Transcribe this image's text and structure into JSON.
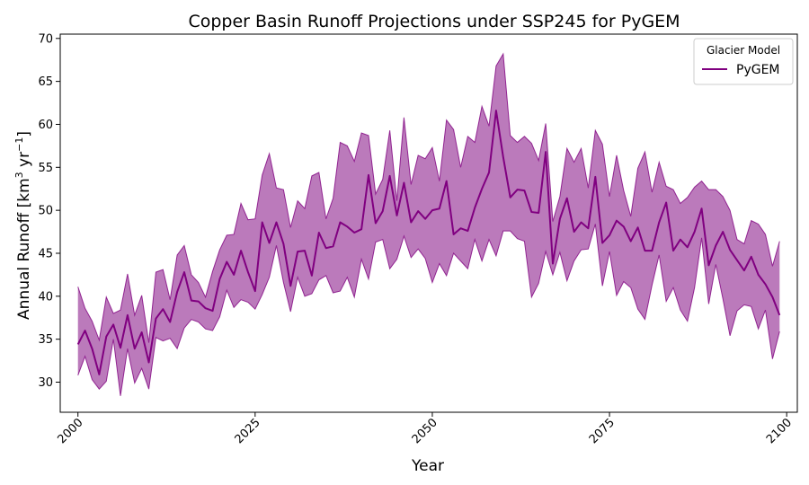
{
  "chart_data": {
    "type": "line",
    "title": "Copper Basin Runoff Projections under SSP245 for PyGEM",
    "xlabel": "Year",
    "ylabel": "Annual Runoff [km",
    "ylabel_sup1": "3",
    "ylabel_mid": " yr",
    "ylabel_sup2": "−1",
    "ylabel_end": "]",
    "xlim": [
      1997.5,
      2101.5
    ],
    "ylim": [
      26.5,
      70.5
    ],
    "x_ticks": [
      2000,
      2025,
      2050,
      2075,
      2100
    ],
    "y_ticks": [
      30,
      35,
      40,
      45,
      50,
      55,
      60,
      65,
      70
    ],
    "legend": {
      "title": "Glacier Model",
      "position": "top-right"
    },
    "colors": {
      "line": "#800080",
      "band": "#bb7abb"
    },
    "series": [
      {
        "name": "PyGEM",
        "x": [
          2000,
          2001,
          2002,
          2003,
          2004,
          2005,
          2006,
          2007,
          2008,
          2009,
          2010,
          2011,
          2012,
          2013,
          2014,
          2015,
          2016,
          2017,
          2018,
          2019,
          2020,
          2021,
          2022,
          2023,
          2024,
          2025,
          2026,
          2027,
          2028,
          2029,
          2030,
          2031,
          2032,
          2033,
          2034,
          2035,
          2036,
          2037,
          2038,
          2039,
          2040,
          2041,
          2042,
          2043,
          2044,
          2045,
          2046,
          2047,
          2048,
          2049,
          2050,
          2051,
          2052,
          2053,
          2054,
          2055,
          2056,
          2057,
          2058,
          2059,
          2060,
          2061,
          2062,
          2063,
          2064,
          2065,
          2066,
          2067,
          2068,
          2069,
          2070,
          2071,
          2072,
          2073,
          2074,
          2075,
          2076,
          2077,
          2078,
          2079,
          2080,
          2081,
          2082,
          2083,
          2084,
          2085,
          2086,
          2087,
          2088,
          2089,
          2090,
          2091,
          2092,
          2093,
          2094,
          2095,
          2096,
          2097,
          2098,
          2099
        ],
        "values": [
          34.4,
          36.0,
          33.9,
          30.9,
          35.3,
          36.7,
          34.0,
          37.8,
          33.9,
          35.8,
          32.3,
          37.4,
          38.5,
          37.0,
          40.5,
          42.8,
          39.5,
          39.4,
          38.6,
          38.3,
          42.0,
          44.0,
          42.5,
          45.3,
          42.8,
          40.6,
          48.6,
          46.2,
          48.6,
          46.1,
          41.2,
          45.2,
          45.3,
          42.4,
          47.4,
          45.6,
          45.8,
          48.6,
          48.1,
          47.4,
          47.8,
          54.1,
          48.5,
          49.9,
          54.0,
          49.4,
          53.2,
          48.6,
          49.9,
          49.0,
          50.0,
          50.2,
          53.4,
          47.2,
          47.9,
          47.6,
          50.3,
          52.5,
          54.4,
          61.6,
          56.2,
          51.5,
          52.4,
          52.3,
          49.8,
          49.7,
          56.8,
          43.8,
          49.0,
          51.4,
          47.5,
          48.6,
          47.9,
          53.9,
          46.2,
          47.1,
          48.8,
          48.1,
          46.4,
          48.0,
          45.3,
          45.3,
          48.6,
          50.9,
          45.3,
          46.6,
          45.7,
          47.5,
          50.2,
          43.6,
          45.9,
          47.5,
          45.4,
          44.2,
          43.0,
          44.6,
          42.5,
          41.4,
          39.9,
          37.8
        ]
      },
      {
        "name": "",
        "upper": [
          41.1,
          38.6,
          37.1,
          34.9,
          39.9,
          38.0,
          38.4,
          42.6,
          37.8,
          40.1,
          34.6,
          42.8,
          43.1,
          39.6,
          44.8,
          45.9,
          42.5,
          41.6,
          39.9,
          42.9,
          45.4,
          47.1,
          47.2,
          50.8,
          48.9,
          49.0,
          54.1,
          56.6,
          52.6,
          52.4,
          48.0,
          51.1,
          50.2,
          54.0,
          54.4,
          49.0,
          51.4,
          57.9,
          57.5,
          55.7,
          59.0,
          58.7,
          51.9,
          53.6,
          59.3,
          51.1,
          60.8,
          53.0,
          56.4,
          56.0,
          57.3,
          53.4,
          60.5,
          59.4,
          55.0,
          58.6,
          57.9,
          62.1,
          59.8,
          66.8,
          68.2,
          58.7,
          57.9,
          58.6,
          57.8,
          55.8,
          60.1,
          48.7,
          51.6,
          57.2,
          55.6,
          57.2,
          52.6,
          59.3,
          57.7,
          51.6,
          56.4,
          52.3,
          49.3,
          54.9,
          56.8,
          52.1,
          55.6,
          52.8,
          52.4,
          50.8,
          51.5,
          52.7,
          53.4,
          52.4,
          52.4,
          51.6,
          50.0,
          46.6,
          46.1,
          48.8,
          48.4,
          47.2,
          43.5,
          46.4
        ],
        "lower": [
          30.8,
          33.0,
          30.3,
          29.2,
          30.1,
          35.0,
          28.4,
          33.9,
          29.9,
          31.6,
          29.2,
          35.2,
          34.8,
          35.1,
          33.9,
          36.3,
          37.3,
          37.0,
          36.2,
          36.0,
          37.6,
          40.7,
          38.7,
          39.6,
          39.3,
          38.5,
          40.2,
          42.2,
          45.9,
          41.6,
          38.2,
          42.2,
          40.0,
          40.3,
          41.9,
          42.4,
          40.4,
          40.6,
          42.2,
          39.9,
          44.3,
          42.0,
          46.3,
          46.6,
          43.2,
          44.3,
          47.0,
          44.5,
          45.5,
          44.4,
          41.6,
          43.8,
          42.4,
          45.0,
          44.1,
          43.2,
          46.6,
          44.1,
          46.6,
          44.7,
          47.6,
          47.6,
          46.7,
          46.4,
          39.9,
          41.5,
          45.2,
          42.5,
          45.1,
          41.8,
          44.1,
          45.4,
          45.5,
          48.4,
          41.2,
          45.2,
          40.1,
          41.7,
          41.0,
          38.5,
          37.3,
          41.3,
          44.8,
          39.4,
          41.0,
          38.4,
          37.1,
          41.0,
          46.8,
          39.1,
          43.7,
          39.7,
          35.4,
          38.3,
          39.0,
          38.8,
          36.2,
          38.4,
          32.7,
          35.9
        ]
      }
    ]
  }
}
